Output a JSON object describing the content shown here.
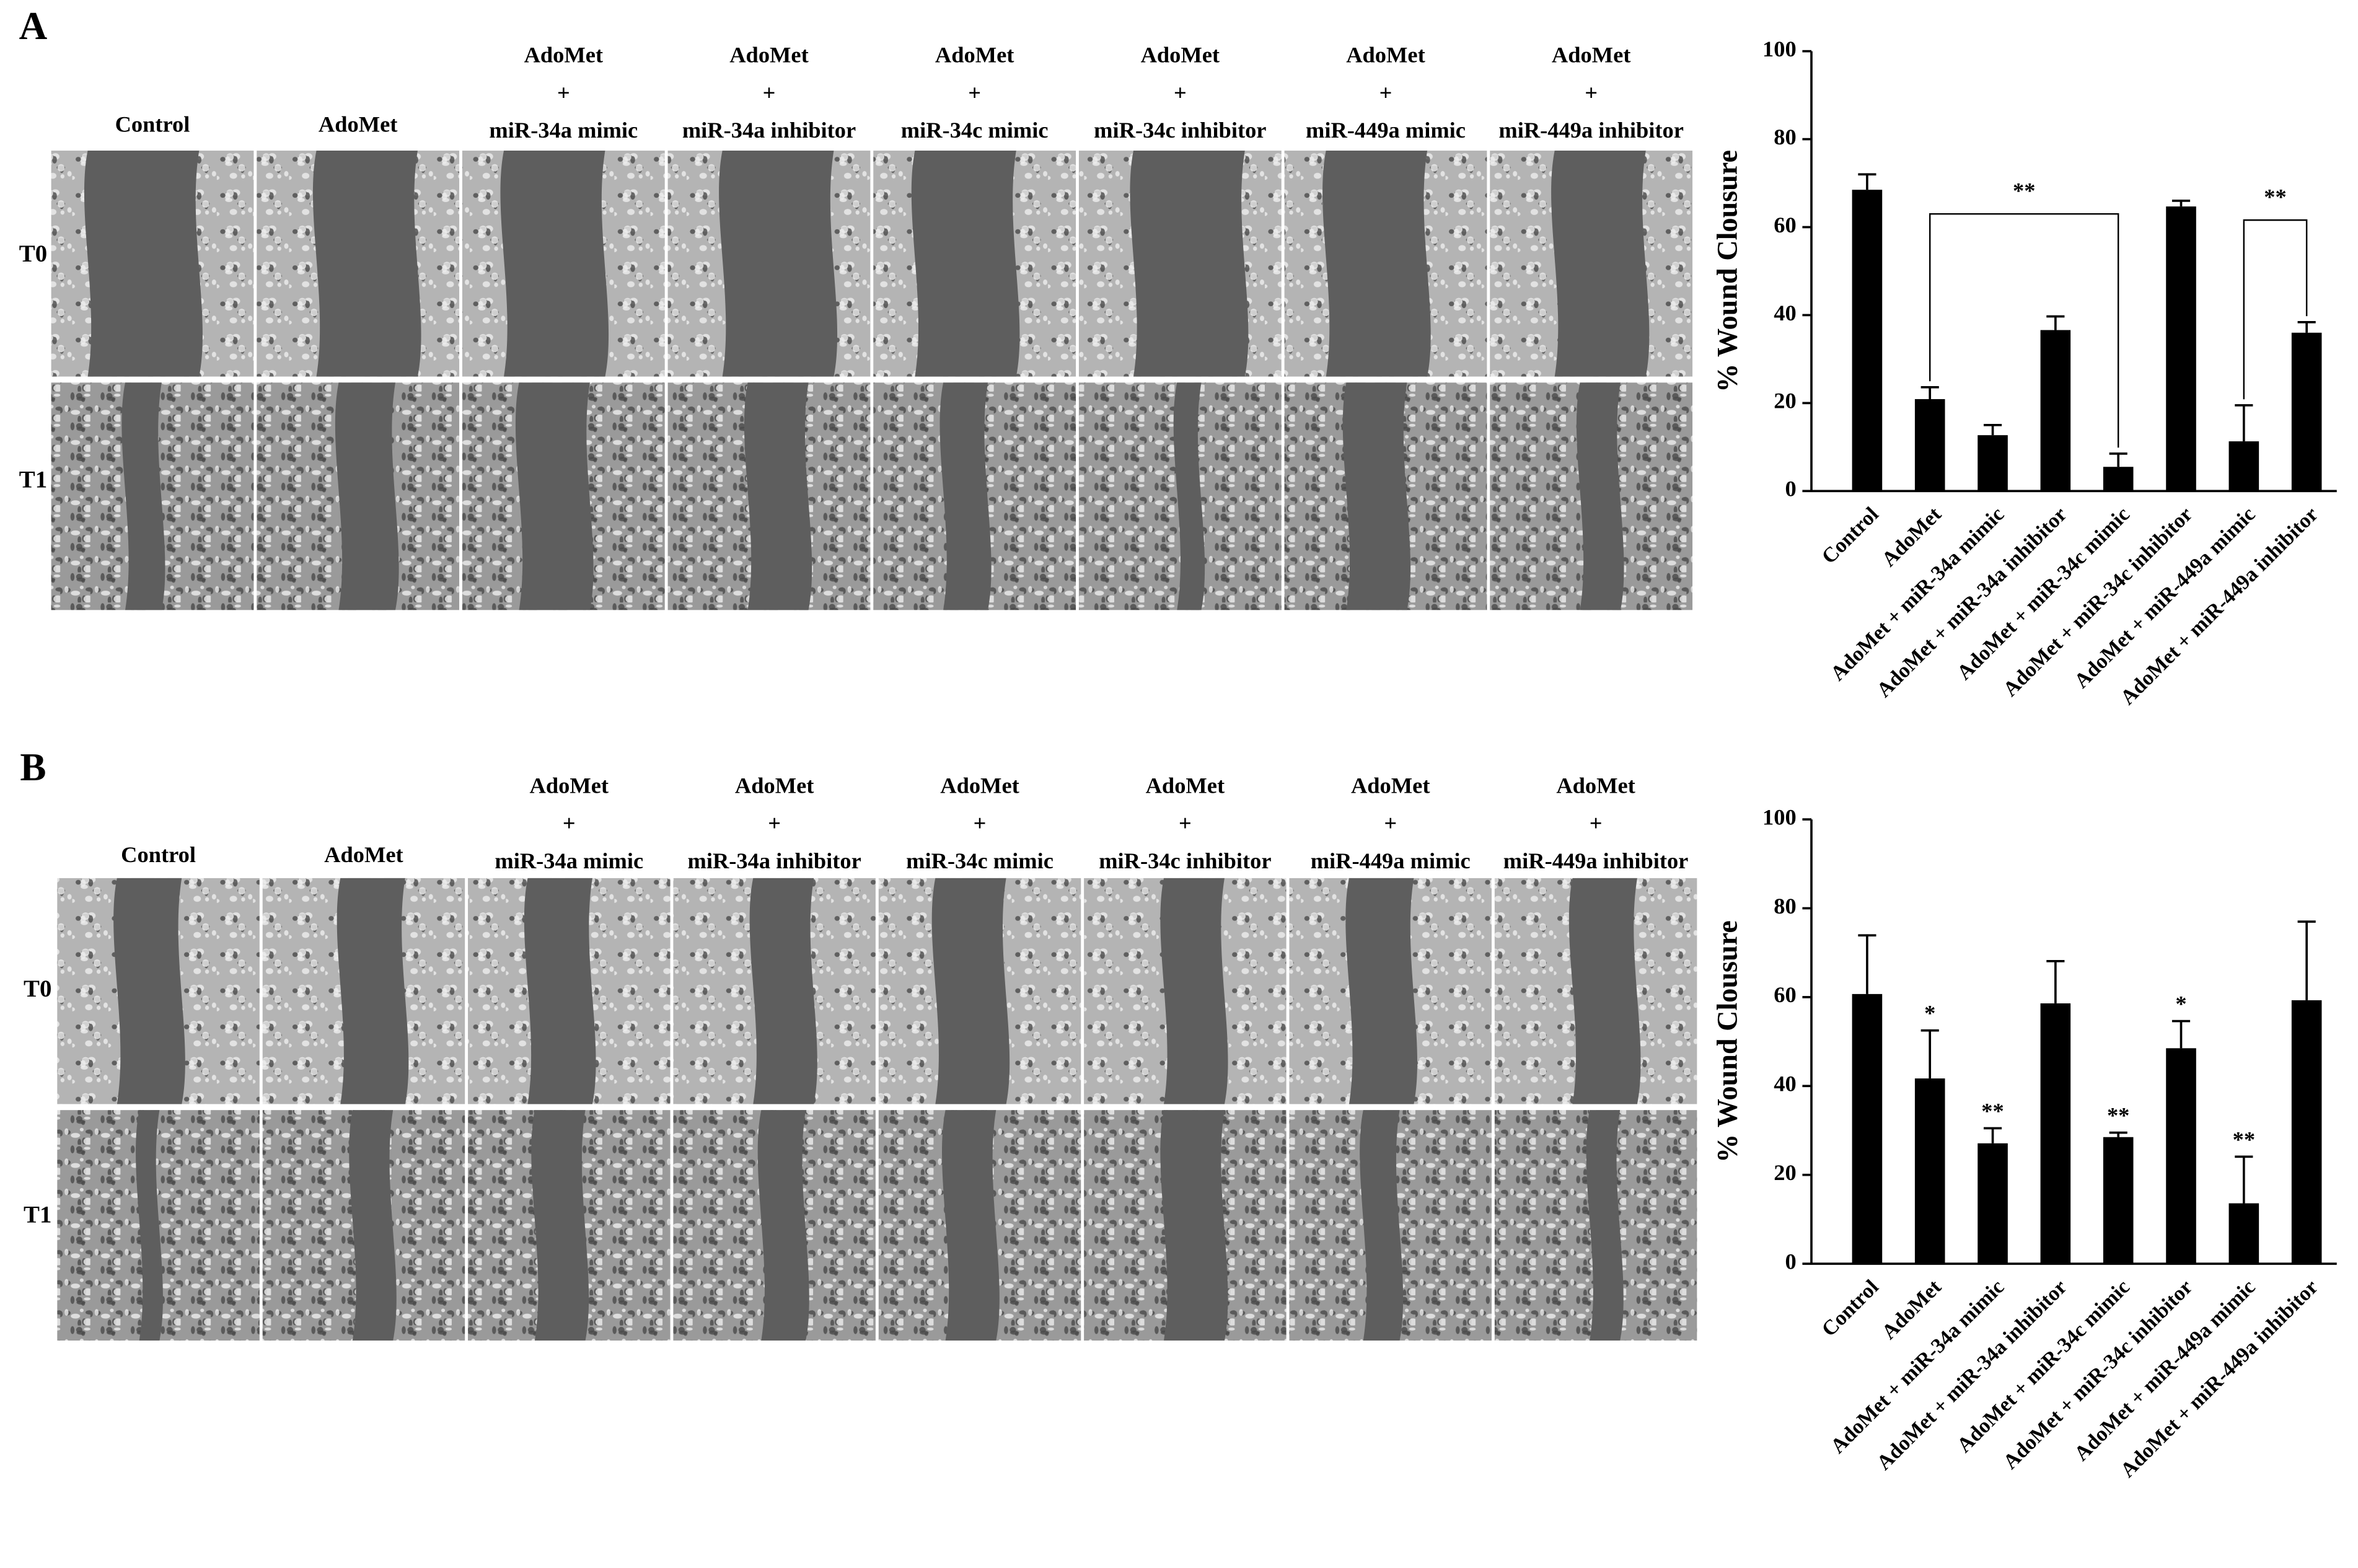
{
  "panels": [
    {
      "label": "A",
      "row_labels": [
        "T0",
        "T1"
      ],
      "columns": [
        [
          "Control"
        ],
        [
          "AdoMet"
        ],
        [
          "AdoMet",
          "+",
          "miR-34a mimic"
        ],
        [
          "AdoMet",
          "+",
          "miR-34a inhibitor"
        ],
        [
          "AdoMet",
          "+",
          "miR-34c mimic"
        ],
        [
          "AdoMet",
          "+",
          "miR-34c inhibitor"
        ],
        [
          "AdoMet",
          "+",
          "miR-449a mimic"
        ],
        [
          "AdoMet",
          "+",
          "miR-449a inhibitor"
        ]
      ]
    },
    {
      "label": "B",
      "row_labels": [
        "T0",
        "T1"
      ],
      "columns": [
        [
          "Control"
        ],
        [
          "AdoMet"
        ],
        [
          "AdoMet",
          "+",
          "miR-34a mimic"
        ],
        [
          "AdoMet",
          "+",
          "miR-34a inhibitor"
        ],
        [
          "AdoMet",
          "+",
          "miR-34c mimic"
        ],
        [
          "AdoMet",
          "+",
          "miR-34c inhibitor"
        ],
        [
          "AdoMet",
          "+",
          "miR-449a mimic"
        ],
        [
          "AdoMet",
          "+",
          "miR-449a inhibitor"
        ]
      ]
    }
  ],
  "chart_data": [
    {
      "type": "bar",
      "y_label": "% Wound Clousure",
      "categories": [
        "Control",
        "AdoMet",
        "AdoMet + miR-34a mimic",
        "AdoMet + miR-34a inhibitor",
        "AdoMet + miR-34c mimic",
        "AdoMet + miR-34c inhibitor",
        "AdoMet + miR-449a mimic",
        "AdoMet + miR-449a inhibitor"
      ],
      "values": [
        68.5,
        20.9,
        12.7,
        36.6,
        5.5,
        64.7,
        11.3,
        36
      ],
      "errors": [
        3.5,
        2.7,
        2.3,
        3.1,
        3,
        1.3,
        8.2,
        2.4
      ],
      "color": "#000000",
      "ylim": [
        0,
        100
      ],
      "yticks": [
        0,
        20,
        40,
        60,
        80,
        100
      ],
      "brackets": [
        {
          "from": 1,
          "to": 4,
          "label": "**"
        },
        {
          "from": 6,
          "to": 7,
          "label": "**"
        }
      ]
    },
    {
      "type": "bar",
      "y_label": "% Wound Clousure",
      "categories": [
        "Control",
        "AdoMet",
        "AdoMet + miR-34a mimic",
        "AdoMet + miR-34a inhibitor",
        "AdoMet + miR-34c mimic",
        "AdoMet + miR-34c inhibitor",
        "AdoMet + miR-449a mimic",
        "AdoMet + miR-449a inhibitor"
      ],
      "values": [
        60.7,
        41.7,
        27.1,
        58.6,
        28.5,
        48.5,
        13.6,
        59.3
      ],
      "errors": [
        13.2,
        10.8,
        3.4,
        9.5,
        1,
        6.1,
        10.5,
        17.7
      ],
      "color": "#000000",
      "ylim": [
        0,
        100
      ],
      "yticks": [
        0,
        20,
        40,
        60,
        80,
        100
      ],
      "annotations": [
        null,
        "*",
        "**",
        null,
        "**",
        "*",
        "**",
        null
      ]
    }
  ]
}
